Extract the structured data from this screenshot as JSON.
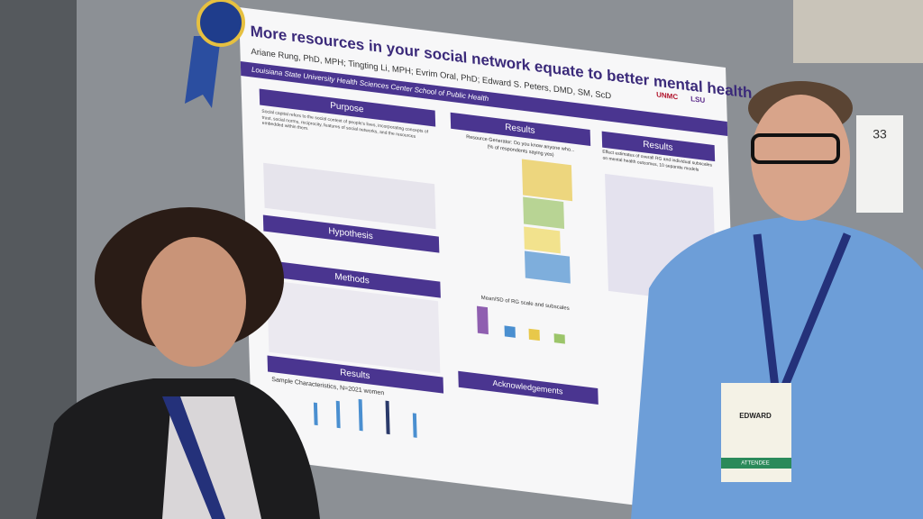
{
  "poster": {
    "title": "More resources in your social network equate to better mental health.",
    "authors": "Ariane Rung, PhD, MPH; Tingting Li, MPH; Evrim Oral, PhD; Edward S. Peters, DMD, SM, ScD",
    "affiliation": "Louisiana State University Health Sciences Center School of Public Health",
    "logos": [
      "UNMC",
      "LSU"
    ],
    "sections": {
      "purpose": "Purpose",
      "hypothesis": "Hypothesis",
      "methods": "Methods",
      "results_left": "Results",
      "results_mid": "Results",
      "results_right": "Results",
      "acknowledgements": "Acknowledgements"
    },
    "purpose_text": "Social capital refers to the social context of people's lives, incorporating concepts of trust, social norms, reciprocity, features of social networks, and the resources embedded within them.",
    "rg_question": "Resource Generator: Do you know anyone who...",
    "rg_sub": "(% of respondents saying yes)",
    "mean_chart_title": "Mean/SD of RG scale and subscales",
    "sample_title": "Sample Characteristics, N=2021 women",
    "effect_title": "Effect estimates of overall RG and individual subscales on mental health outcomes, 10 separate models"
  },
  "board_number": "33",
  "badge": {
    "name": "EDWARD",
    "role": "ATTENDEE"
  }
}
